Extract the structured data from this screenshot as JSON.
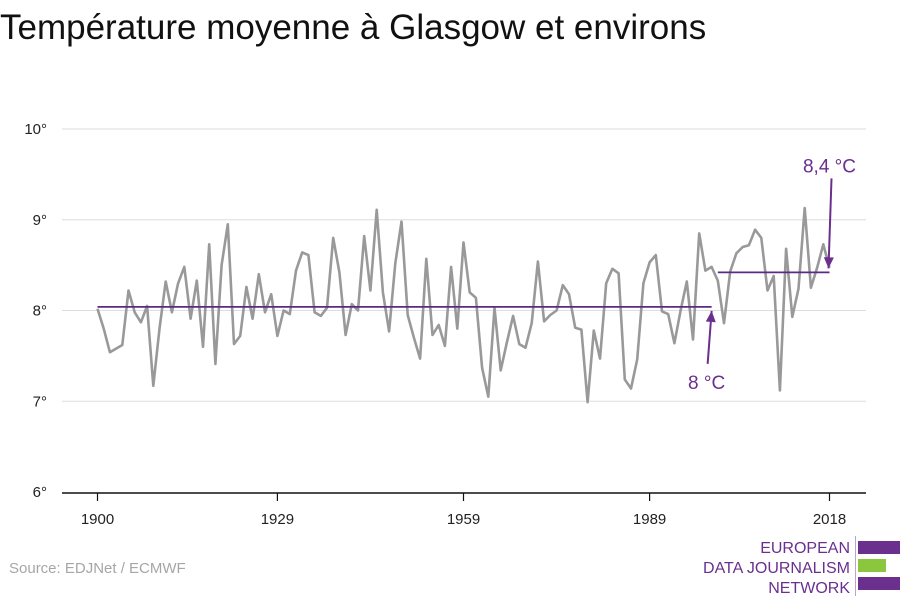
{
  "title": "Température moyenne à Glasgow et environs",
  "source": "Source: EDJNet / ECMWF",
  "logo": {
    "lines": [
      "EUROPEAN",
      "DATA JOURNALISM",
      "NETWORK"
    ],
    "colors": {
      "purple": "#6b2f8e",
      "green": "#8cc63f"
    }
  },
  "colors": {
    "series": "#999999",
    "reference": "#5b2a86",
    "annotation": "#6b2f8e",
    "grid": "#dddddd"
  },
  "chart_data": {
    "type": "line",
    "title": "Température moyenne à Glasgow et environs",
    "xlabel": "",
    "ylabel": "",
    "xlim": [
      1900,
      2019
    ],
    "ylim": [
      6,
      10
    ],
    "grid": true,
    "x_ticks": [
      1900,
      1929,
      1959,
      1989,
      2018
    ],
    "x_tick_labels": [
      "1900",
      "1929",
      "1959",
      "1989",
      "2018"
    ],
    "y_ticks": [
      6,
      7,
      8,
      9,
      10
    ],
    "y_tick_labels": [
      "6°",
      "7°",
      "8°",
      "9°",
      "10°"
    ],
    "series": [
      {
        "x_start": 1900,
        "x_step": 1,
        "values": [
          8.02,
          7.8,
          7.54,
          7.58,
          7.62,
          8.22,
          7.98,
          7.87,
          8.05,
          7.17,
          7.8,
          8.32,
          7.98,
          8.3,
          8.48,
          7.91,
          8.33,
          7.6,
          8.73,
          7.41,
          8.5,
          8.95,
          7.63,
          7.72,
          8.26,
          7.91,
          8.4,
          7.98,
          8.18,
          7.72,
          8.0,
          7.96,
          8.44,
          8.64,
          8.61,
          7.98,
          7.94,
          8.03,
          8.8,
          8.42,
          7.73,
          8.07,
          8.0,
          8.82,
          8.22,
          9.11,
          8.2,
          7.77,
          8.52,
          8.98,
          7.95,
          7.7,
          7.47,
          8.57,
          7.73,
          7.84,
          7.61,
          8.48,
          7.8,
          8.75,
          8.2,
          8.14,
          7.37,
          7.05,
          8.03,
          7.34,
          7.65,
          7.94,
          7.63,
          7.59,
          7.86,
          8.54,
          7.88,
          7.95,
          8.0,
          8.28,
          8.18,
          7.81,
          7.79,
          6.99,
          7.78,
          7.47,
          8.3,
          8.46,
          8.41,
          7.24,
          7.14,
          7.46,
          8.3,
          8.53,
          8.61,
          7.99,
          7.96,
          7.64,
          8.0,
          8.32,
          7.68,
          8.85,
          8.44,
          8.48,
          8.33,
          7.86,
          8.43,
          8.63,
          8.7,
          8.72,
          8.89,
          8.8,
          8.22,
          8.38,
          7.12,
          8.68,
          7.93,
          8.24,
          9.13,
          8.25,
          8.47,
          8.73,
          8.47
        ]
      }
    ],
    "reference_lines": [
      {
        "x_start": 1900,
        "x_end": 1999,
        "value": 8.04,
        "label": "8 °C"
      },
      {
        "x_start": 2000,
        "x_end": 2018,
        "value": 8.42,
        "label": "8,4 °C"
      }
    ]
  }
}
